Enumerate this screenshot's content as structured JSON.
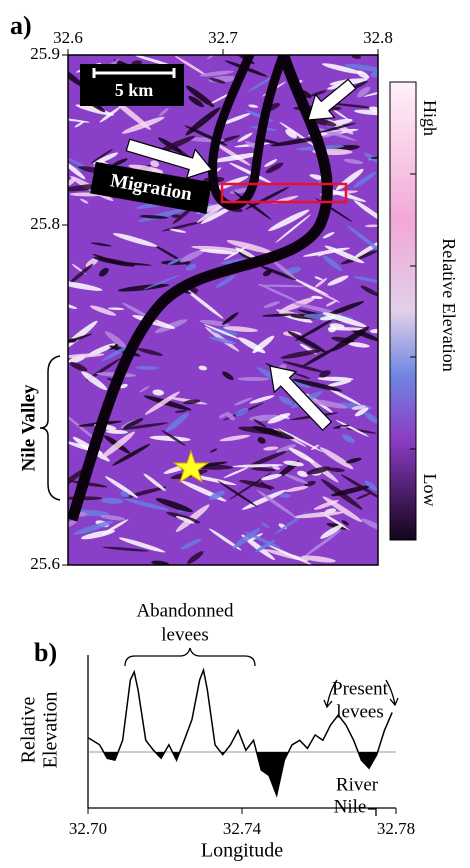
{
  "chart_data": [
    {
      "type": "map",
      "panel_label": "a)",
      "xlim": [
        32.6,
        32.8
      ],
      "xticks": [
        32.6,
        32.7,
        32.8
      ],
      "ylim": [
        25.6,
        25.9
      ],
      "yticks": [
        25.6,
        25.8,
        25.9
      ],
      "scale_bar": "5 km",
      "arrow_label": "Migration",
      "bracket_label": "Nile Valley",
      "colorbar": {
        "label": "Relative Elevation",
        "high": "High",
        "low": "Low"
      }
    },
    {
      "type": "line",
      "panel_label": "b)",
      "x_label": "Longitude",
      "y_label": [
        "Relative",
        "Elevation"
      ],
      "xlim": [
        32.7,
        32.78
      ],
      "xticks": [
        {
          "value": 32.7,
          "label": "32.70"
        },
        {
          "value": 32.74,
          "label": "32.74"
        },
        {
          "value": 32.78,
          "label": "32.78"
        }
      ],
      "ylim": [
        -0.5,
        1
      ],
      "annotations": {
        "abandoned": [
          "Abandonned",
          "levees"
        ],
        "present": [
          "Present",
          "levees"
        ],
        "river": [
          "River",
          "Nile"
        ]
      },
      "series": [
        {
          "color": "#000000",
          "x": [
            32.7,
            32.703,
            32.705,
            32.707,
            32.709,
            32.711,
            32.712,
            32.713,
            32.715,
            32.717,
            32.719,
            32.721,
            32.723,
            32.725,
            32.727,
            32.729,
            32.73,
            32.731,
            32.733,
            32.735,
            32.737,
            32.739,
            32.741,
            32.743,
            32.745,
            32.747,
            32.749,
            32.751,
            32.753,
            32.755,
            32.757,
            32.759,
            32.761,
            32.763,
            32.765,
            32.767,
            32.769,
            32.771,
            32.773,
            32.775,
            32.777,
            32.779
          ],
          "values": [
            0.16,
            0.08,
            -0.07,
            -0.09,
            0.13,
            0.8,
            0.89,
            0.69,
            0.13,
            0.02,
            -0.07,
            0.08,
            -0.09,
            0.13,
            0.36,
            0.8,
            0.91,
            0.69,
            0.08,
            -0.03,
            0.08,
            0.24,
            0.02,
            0.13,
            -0.2,
            -0.26,
            -0.48,
            -0.09,
            0.08,
            0.13,
            0.04,
            0.19,
            0.13,
            0.3,
            0.41,
            0.3,
            0.13,
            -0.09,
            -0.18,
            -0.03,
            0.24,
            0.44
          ]
        }
      ]
    }
  ]
}
